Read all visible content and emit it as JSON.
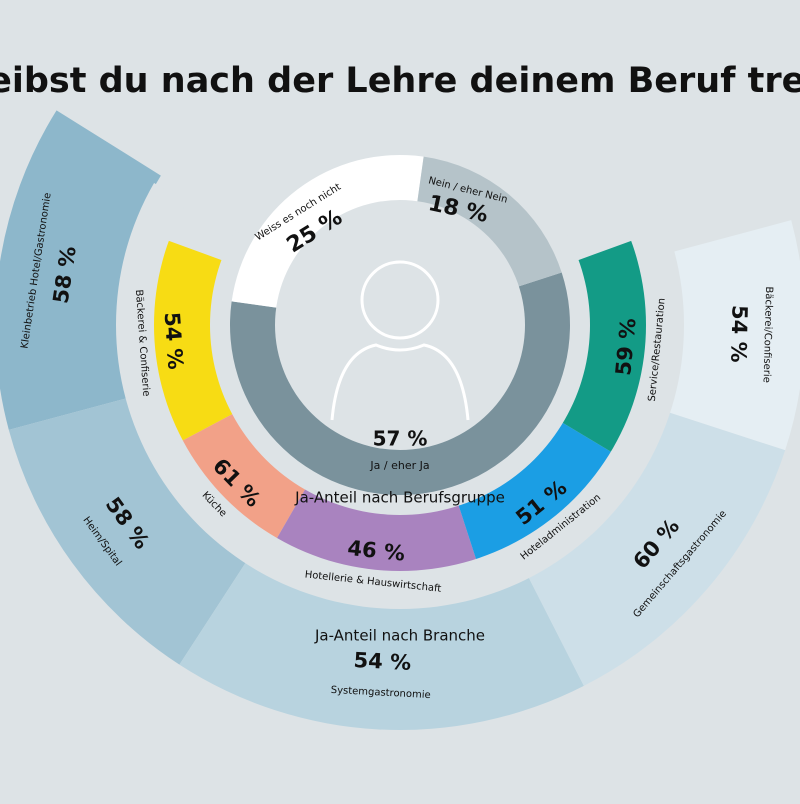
{
  "title": "Bleibst du nach der Lehre deinem Beruf treu?",
  "colors": {
    "background": "#dde3e6",
    "text": "#111111"
  },
  "chart_data": [
    {
      "type": "pie",
      "name": "overall",
      "slices": [
        {
          "label": "Ja / eher Ja",
          "value": 57,
          "color": "#7a929c"
        },
        {
          "label": "Weiss es noch nicht",
          "value": 25,
          "color": "#ffffff"
        },
        {
          "label": "Nein / eher Nein",
          "value": 18,
          "color": "#b5c3c9"
        }
      ]
    },
    {
      "type": "bar",
      "subtitle": "Ja-Anteil nach Berufsgruppe",
      "categories": [
        "Bäckerei & Confiserie",
        "Küche",
        "Hotellerie & Hauswirtschaft",
        "Hoteladministration",
        "Service/Restauration"
      ],
      "values": [
        54,
        61,
        46,
        51,
        59
      ],
      "colors": [
        "#f7dc14",
        "#f2a188",
        "#a983bf",
        "#1b9ee4",
        "#139b86"
      ]
    },
    {
      "type": "bar",
      "subtitle": "Ja-Anteil nach Branche",
      "categories": [
        "Kleinbetrieb Hotel/Gastronomie",
        "Heim/Spital",
        "Systemgastronomie",
        "Gemeinschaftsgastronomie",
        "Bäckerei/Confiserie"
      ],
      "values": [
        58,
        58,
        54,
        60,
        54
      ],
      "colors": [
        "#8db7cb",
        "#a2c4d4",
        "#b8d3df",
        "#cddfe8",
        "#e5eef3"
      ]
    }
  ],
  "labels": {
    "overall": [
      {
        "pct": "57 %",
        "label": "Ja / eher Ja"
      },
      {
        "pct": "25 %",
        "label": "Weiss es noch nicht"
      },
      {
        "pct": "18 %",
        "label": "Nein / eher Nein"
      }
    ],
    "group": [
      {
        "pct": "54 %",
        "label": "Bäckerei & Confiserie"
      },
      {
        "pct": "61 %",
        "label": "Küche"
      },
      {
        "pct": "46 %",
        "label": "Hotellerie & Hauswirtschaft"
      },
      {
        "pct": "51 %",
        "label": "Hoteladministration"
      },
      {
        "pct": "59 %",
        "label": "Service/Restauration"
      }
    ],
    "branche": [
      {
        "pct": "58 %",
        "label": "Kleinbetrieb Hotel/Gastronomie"
      },
      {
        "pct": "58 %",
        "label": "Heim/Spital"
      },
      {
        "pct": "54 %",
        "label": "Systemgastronomie"
      },
      {
        "pct": "60 %",
        "label": "Gemeinschaftsgastronomie"
      },
      {
        "pct": "54 %",
        "label": "Bäckerei/Confiserie"
      }
    ],
    "group_caption": "Ja-Anteil nach Berufsgruppe",
    "branche_caption": "Ja-Anteil nach Branche"
  }
}
